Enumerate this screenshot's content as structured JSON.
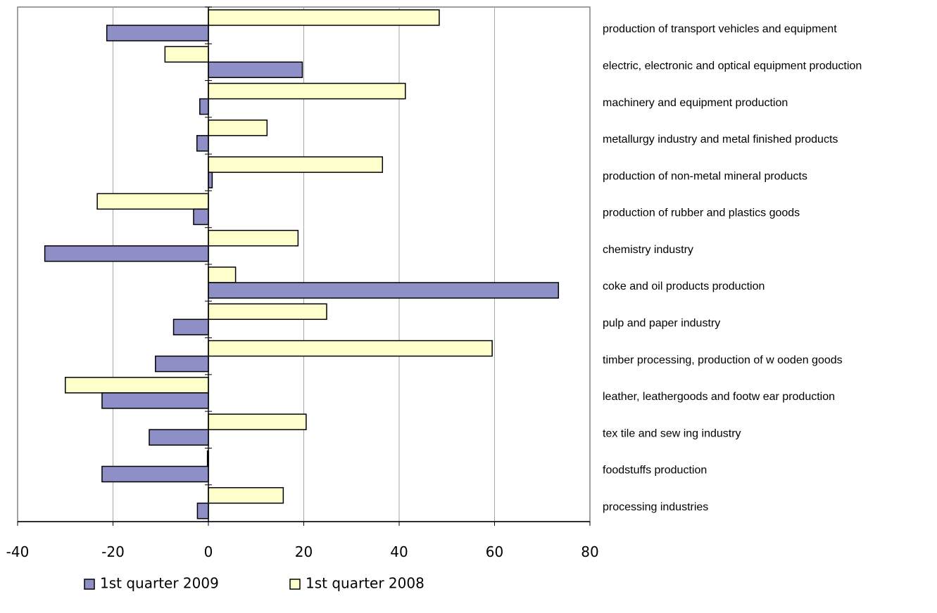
{
  "chart_data": {
    "type": "bar",
    "orientation": "horizontal",
    "categories": [
      "processing industries",
      "foodstuffs production",
      "tex tile and sew ing industry",
      "leather, leathergoods and footw ear production",
      "timber processing, production of w ooden goods",
      "pulp and paper industry",
      "coke and oil products production",
      "chemistry industry",
      "production of rubber and plastics goods",
      "production of non-metal mineral products",
      "metallurgy industry and metal finished products",
      "machinery and equipment production",
      "electric, electronic and optical equipment production",
      "production of transport vehicles and equipment"
    ],
    "series": [
      {
        "name": "1st quarter 2009",
        "color": "#8f8fc8",
        "values": [
          -2.3,
          -22.3,
          -12.4,
          -22.3,
          -11.1,
          -7.3,
          73.4,
          -34.3,
          -3.1,
          0.8,
          -2.4,
          -1.8,
          19.7,
          -21.3
        ]
      },
      {
        "name": "1st quarter 2008",
        "color": "#ffffcc",
        "values": [
          15.7,
          -0.2,
          20.5,
          -30.0,
          59.5,
          24.8,
          5.7,
          18.8,
          -23.3,
          36.5,
          12.3,
          41.3,
          -9.1,
          48.4
        ]
      }
    ],
    "xlim": [
      -40,
      80
    ],
    "xticks": [
      "-40",
      "-20",
      "0",
      "20",
      "40",
      "60",
      "80"
    ],
    "grid": true,
    "legend_position": "bottom",
    "title": "",
    "xlabel": "",
    "ylabel": ""
  }
}
